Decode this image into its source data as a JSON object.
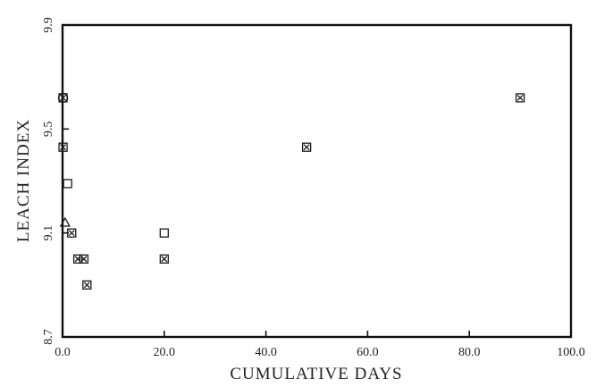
{
  "chart_data": {
    "type": "scatter",
    "title": "",
    "xlabel": "CUMULATIVE DAYS",
    "ylabel": "LEACH INDEX",
    "xlim": [
      0,
      100
    ],
    "ylim": [
      8.7,
      9.9
    ],
    "x_ticks": [
      {
        "value": 0,
        "label": "0.0"
      },
      {
        "value": 20,
        "label": "20.0"
      },
      {
        "value": 40,
        "label": "40.0"
      },
      {
        "value": 60,
        "label": "60.0"
      },
      {
        "value": 80,
        "label": "80.0"
      },
      {
        "value": 100,
        "label": "100.0"
      }
    ],
    "y_ticks": [
      {
        "value": 8.7,
        "label": "8.7"
      },
      {
        "value": 9.1,
        "label": "9.1"
      },
      {
        "value": 9.5,
        "label": "9.5"
      },
      {
        "value": 9.9,
        "label": "9.9"
      }
    ],
    "grid": false,
    "legend": "none",
    "series": [
      {
        "marker": "square",
        "points": [
          {
            "x": 0.1,
            "y": 9.62
          },
          {
            "x": 0.1,
            "y": 9.43
          },
          {
            "x": 1.0,
            "y": 9.29
          },
          {
            "x": 1.8,
            "y": 9.1
          },
          {
            "x": 3.0,
            "y": 9.0
          },
          {
            "x": 4.2,
            "y": 9.0
          },
          {
            "x": 4.8,
            "y": 8.9
          },
          {
            "x": 20.0,
            "y": 9.1
          },
          {
            "x": 20.0,
            "y": 9.0
          },
          {
            "x": 48.0,
            "y": 9.43
          },
          {
            "x": 90.0,
            "y": 9.62
          }
        ]
      },
      {
        "marker": "cross-square",
        "points": [
          {
            "x": 0.1,
            "y": 9.62
          },
          {
            "x": 0.1,
            "y": 9.43
          },
          {
            "x": 1.8,
            "y": 9.1
          },
          {
            "x": 3.0,
            "y": 9.0
          },
          {
            "x": 4.2,
            "y": 9.0
          },
          {
            "x": 4.8,
            "y": 8.9
          },
          {
            "x": 20.0,
            "y": 9.0
          },
          {
            "x": 48.0,
            "y": 9.43
          },
          {
            "x": 90.0,
            "y": 9.62
          }
        ]
      },
      {
        "marker": "circle",
        "points": [
          {
            "x": 0.1,
            "y": 9.62
          }
        ]
      },
      {
        "marker": "triangle",
        "points": [
          {
            "x": 0.5,
            "y": 9.14
          }
        ]
      }
    ]
  }
}
